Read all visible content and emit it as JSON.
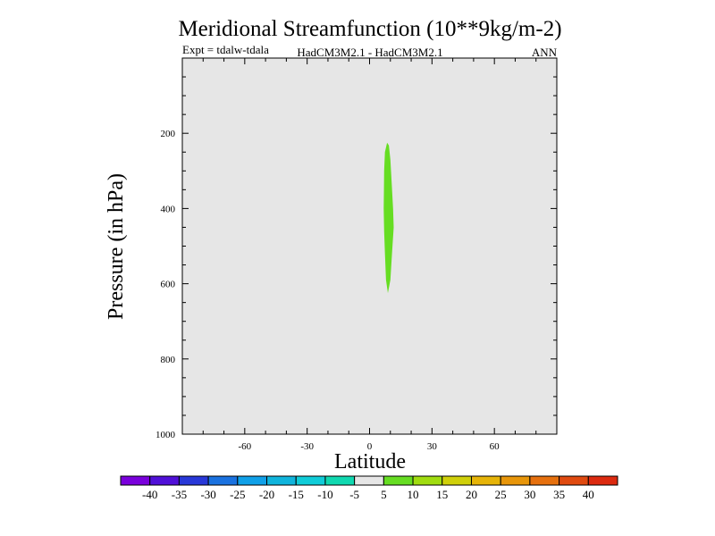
{
  "chart_data": {
    "type": "contour",
    "title": "Meridional Streamfunction (10**9kg/m-2)",
    "subtitle_left": "Expt = tdalw-tdala",
    "subtitle_center": "HadCM3M2.1 - HadCM3M2.1",
    "subtitle_right": "ANN",
    "xlabel": "Latitude",
    "ylabel": "Pressure (in hPa)",
    "xlim": [
      -90,
      90
    ],
    "ylim": [
      1000,
      0
    ],
    "xticks": [
      -60,
      -30,
      0,
      30,
      60
    ],
    "xtick_labels": [
      "-60",
      "-30",
      "0",
      "30",
      "60"
    ],
    "yticks": [
      200,
      400,
      600,
      800,
      1000
    ],
    "ytick_labels": [
      "200",
      "400",
      "600",
      "800",
      "1000"
    ],
    "background_color": "#e6e6e6",
    "regions": [
      {
        "name": "positive-anomaly",
        "level": "5 to 10",
        "color": "#66dd22",
        "outline": [
          [
            7.0,
            300
          ],
          [
            7.4,
            250
          ],
          [
            8.4,
            225
          ],
          [
            9.3,
            232
          ],
          [
            10.0,
            270
          ],
          [
            10.6,
            330
          ],
          [
            11.3,
            400
          ],
          [
            11.6,
            450
          ],
          [
            10.8,
            520
          ],
          [
            10.0,
            590
          ],
          [
            8.8,
            625
          ],
          [
            7.9,
            590
          ],
          [
            7.4,
            520
          ],
          [
            7.0,
            460
          ],
          [
            6.8,
            400
          ],
          [
            6.9,
            345
          ]
        ]
      }
    ],
    "colorbar": {
      "levels": [
        "-40",
        "-35",
        "-30",
        "-25",
        "-20",
        "-15",
        "-10",
        "-5",
        "5",
        "10",
        "15",
        "20",
        "25",
        "30",
        "35",
        "40"
      ],
      "colors": [
        "#7a00dc",
        "#5010d8",
        "#2838d8",
        "#1a72e0",
        "#10a0e8",
        "#10b4dc",
        "#10ccd8",
        "#10d8b0",
        "#e6e6e6",
        "#66dd22",
        "#a0dc10",
        "#d0d00a",
        "#e6b408",
        "#e8960a",
        "#e6700e",
        "#e04a10",
        "#dc2a10"
      ]
    }
  }
}
